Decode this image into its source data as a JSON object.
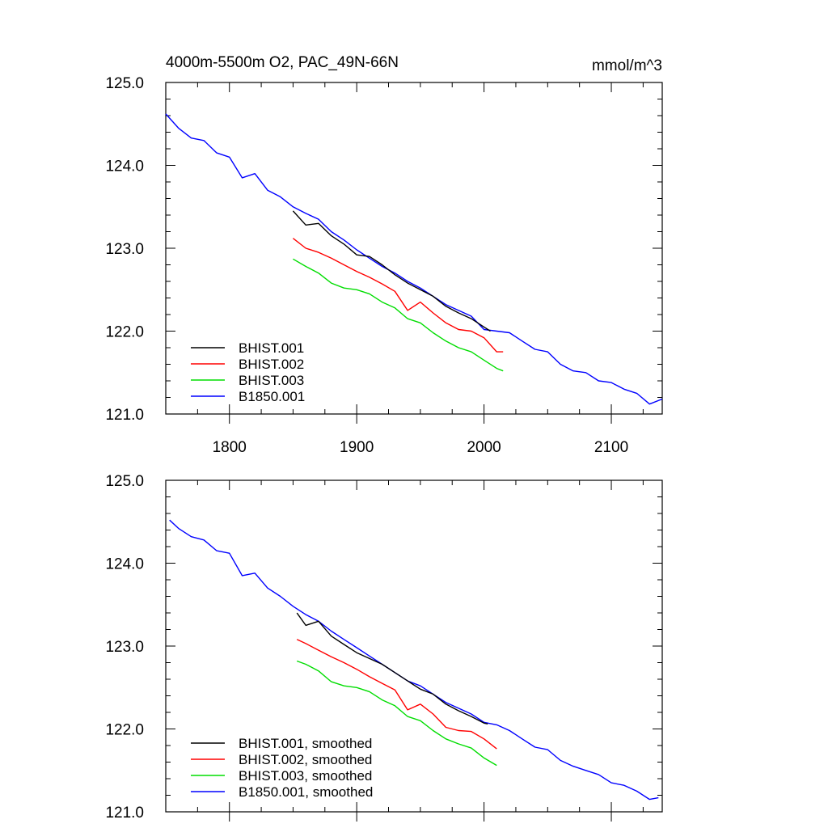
{
  "chart_data": [
    {
      "type": "line",
      "title": "4000m-5500m O2, PAC_49N-66N",
      "units": "mmol/m^3",
      "xlim": [
        1750,
        2140
      ],
      "ylim": [
        121.0,
        125.0
      ],
      "x_ticks": [
        1800,
        1900,
        2000,
        2100
      ],
      "x_tick_labels": [
        "1800",
        "1900",
        "2000",
        "2100"
      ],
      "y_ticks": [
        121.0,
        122.0,
        123.0,
        124.0,
        125.0
      ],
      "y_tick_labels": [
        "121.0",
        "122.0",
        "123.0",
        "124.0",
        "125.0"
      ],
      "legend_position": "bottom-left",
      "series": [
        {
          "name": "BHIST.001",
          "color": "#000000",
          "x": [
            1850,
            1860,
            1870,
            1880,
            1890,
            1900,
            1910,
            1920,
            1930,
            1940,
            1950,
            1960,
            1970,
            1980,
            1990,
            2000,
            2005
          ],
          "y": [
            123.45,
            123.28,
            123.3,
            123.15,
            123.05,
            122.92,
            122.9,
            122.8,
            122.68,
            122.58,
            122.5,
            122.42,
            122.3,
            122.22,
            122.15,
            122.05,
            122.0
          ]
        },
        {
          "name": "BHIST.002",
          "color": "#ff0000",
          "x": [
            1850,
            1860,
            1870,
            1880,
            1890,
            1900,
            1910,
            1920,
            1930,
            1940,
            1950,
            1960,
            1970,
            1980,
            1990,
            2000,
            2010,
            2015
          ],
          "y": [
            123.12,
            123.0,
            122.95,
            122.88,
            122.8,
            122.72,
            122.65,
            122.57,
            122.48,
            122.25,
            122.35,
            122.22,
            122.1,
            122.02,
            122.0,
            121.92,
            121.75,
            121.75
          ]
        },
        {
          "name": "BHIST.003",
          "color": "#00dd00",
          "x": [
            1850,
            1860,
            1870,
            1880,
            1890,
            1900,
            1910,
            1920,
            1930,
            1940,
            1950,
            1960,
            1970,
            1980,
            1990,
            2000,
            2010,
            2015
          ],
          "y": [
            122.87,
            122.78,
            122.7,
            122.58,
            122.52,
            122.5,
            122.45,
            122.35,
            122.28,
            122.15,
            122.1,
            121.98,
            121.88,
            121.8,
            121.75,
            121.65,
            121.55,
            121.52
          ]
        },
        {
          "name": "B1850.001",
          "color": "#0000ff",
          "x": [
            1750,
            1760,
            1770,
            1780,
            1790,
            1800,
            1810,
            1820,
            1830,
            1840,
            1850,
            1860,
            1870,
            1880,
            1890,
            1900,
            1910,
            1920,
            1930,
            1940,
            1950,
            1960,
            1970,
            1980,
            1990,
            2000,
            2010,
            2020,
            2030,
            2040,
            2050,
            2060,
            2070,
            2080,
            2090,
            2100,
            2110,
            2120,
            2130,
            2140
          ],
          "y": [
            124.62,
            124.45,
            124.33,
            124.3,
            124.15,
            124.1,
            123.85,
            123.9,
            123.7,
            123.62,
            123.5,
            123.42,
            123.35,
            123.2,
            123.1,
            122.98,
            122.88,
            122.78,
            122.7,
            122.6,
            122.52,
            122.42,
            122.32,
            122.25,
            122.18,
            122.02,
            122.0,
            121.98,
            121.88,
            121.78,
            121.75,
            121.6,
            121.52,
            121.5,
            121.4,
            121.38,
            121.3,
            121.25,
            121.12,
            121.18
          ]
        }
      ]
    },
    {
      "type": "line",
      "xlim": [
        1750,
        2140
      ],
      "ylim": [
        121.0,
        125.0
      ],
      "x_ticks": [
        1800,
        1900,
        2000,
        2100
      ],
      "y_ticks": [
        121.0,
        122.0,
        123.0,
        124.0,
        125.0
      ],
      "y_tick_labels": [
        "121.0",
        "122.0",
        "123.0",
        "124.0",
        "125.0"
      ],
      "legend_position": "bottom-left",
      "series": [
        {
          "name": "BHIST.001, smoothed",
          "color": "#000000",
          "x": [
            1853,
            1860,
            1870,
            1880,
            1890,
            1900,
            1910,
            1920,
            1930,
            1940,
            1950,
            1960,
            1970,
            1980,
            1990,
            2000,
            2003
          ],
          "y": [
            123.4,
            123.25,
            123.3,
            123.12,
            123.02,
            122.92,
            122.85,
            122.78,
            122.68,
            122.58,
            122.48,
            122.42,
            122.3,
            122.22,
            122.15,
            122.07,
            122.06
          ]
        },
        {
          "name": "BHIST.002, smoothed",
          "color": "#ff0000",
          "x": [
            1853,
            1860,
            1870,
            1880,
            1890,
            1900,
            1910,
            1920,
            1930,
            1940,
            1950,
            1960,
            1970,
            1980,
            1990,
            2000,
            2010
          ],
          "y": [
            123.08,
            123.03,
            122.95,
            122.87,
            122.8,
            122.72,
            122.63,
            122.55,
            122.47,
            122.23,
            122.3,
            122.18,
            122.02,
            121.98,
            121.97,
            121.88,
            121.76
          ]
        },
        {
          "name": "BHIST.003, smoothed",
          "color": "#00dd00",
          "x": [
            1853,
            1860,
            1870,
            1880,
            1890,
            1900,
            1910,
            1920,
            1930,
            1940,
            1950,
            1960,
            1970,
            1980,
            1990,
            2000,
            2010
          ],
          "y": [
            122.82,
            122.78,
            122.7,
            122.57,
            122.52,
            122.5,
            122.45,
            122.35,
            122.28,
            122.15,
            122.1,
            121.98,
            121.88,
            121.82,
            121.77,
            121.65,
            121.56
          ]
        },
        {
          "name": "B1850.001, smoothed",
          "color": "#0000ff",
          "x": [
            1753,
            1760,
            1770,
            1780,
            1790,
            1800,
            1810,
            1820,
            1830,
            1840,
            1850,
            1860,
            1870,
            1880,
            1890,
            1900,
            1910,
            1920,
            1930,
            1940,
            1950,
            1960,
            1970,
            1980,
            1990,
            2000,
            2010,
            2020,
            2030,
            2040,
            2050,
            2060,
            2070,
            2080,
            2090,
            2100,
            2110,
            2120,
            2130,
            2137
          ],
          "y": [
            124.52,
            124.42,
            124.32,
            124.28,
            124.15,
            124.12,
            123.85,
            123.88,
            123.7,
            123.6,
            123.48,
            123.38,
            123.3,
            123.18,
            123.08,
            122.98,
            122.88,
            122.78,
            122.68,
            122.58,
            122.52,
            122.42,
            122.32,
            122.25,
            122.18,
            122.08,
            122.05,
            121.98,
            121.88,
            121.78,
            121.75,
            121.62,
            121.55,
            121.5,
            121.45,
            121.35,
            121.32,
            121.25,
            121.15,
            121.17
          ]
        }
      ]
    }
  ]
}
